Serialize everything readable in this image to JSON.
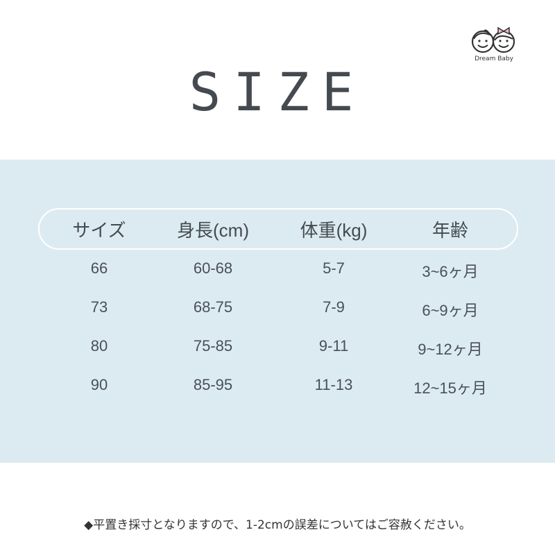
{
  "brand": {
    "logo_text": "Dream Baby",
    "accent_color": "#f4b6c8"
  },
  "title": "SIZE",
  "colors": {
    "panel_bg": "#dcebf2",
    "text": "#4a4f56"
  },
  "table": {
    "headers": [
      "サイズ",
      "身長(cm)",
      "体重(kg)",
      "年齢"
    ],
    "rows": [
      [
        "66",
        "60-68",
        "5-7",
        "3~6ヶ月"
      ],
      [
        "73",
        "68-75",
        "7-9",
        "6~9ヶ月"
      ],
      [
        "80",
        "75-85",
        "9-11",
        "9~12ヶ月"
      ],
      [
        "90",
        "85-95",
        "11-13",
        "12~15ヶ月"
      ]
    ]
  },
  "note": "◆平置き採寸となりますので、1-2cmの誤差についてはご容赦ください。"
}
